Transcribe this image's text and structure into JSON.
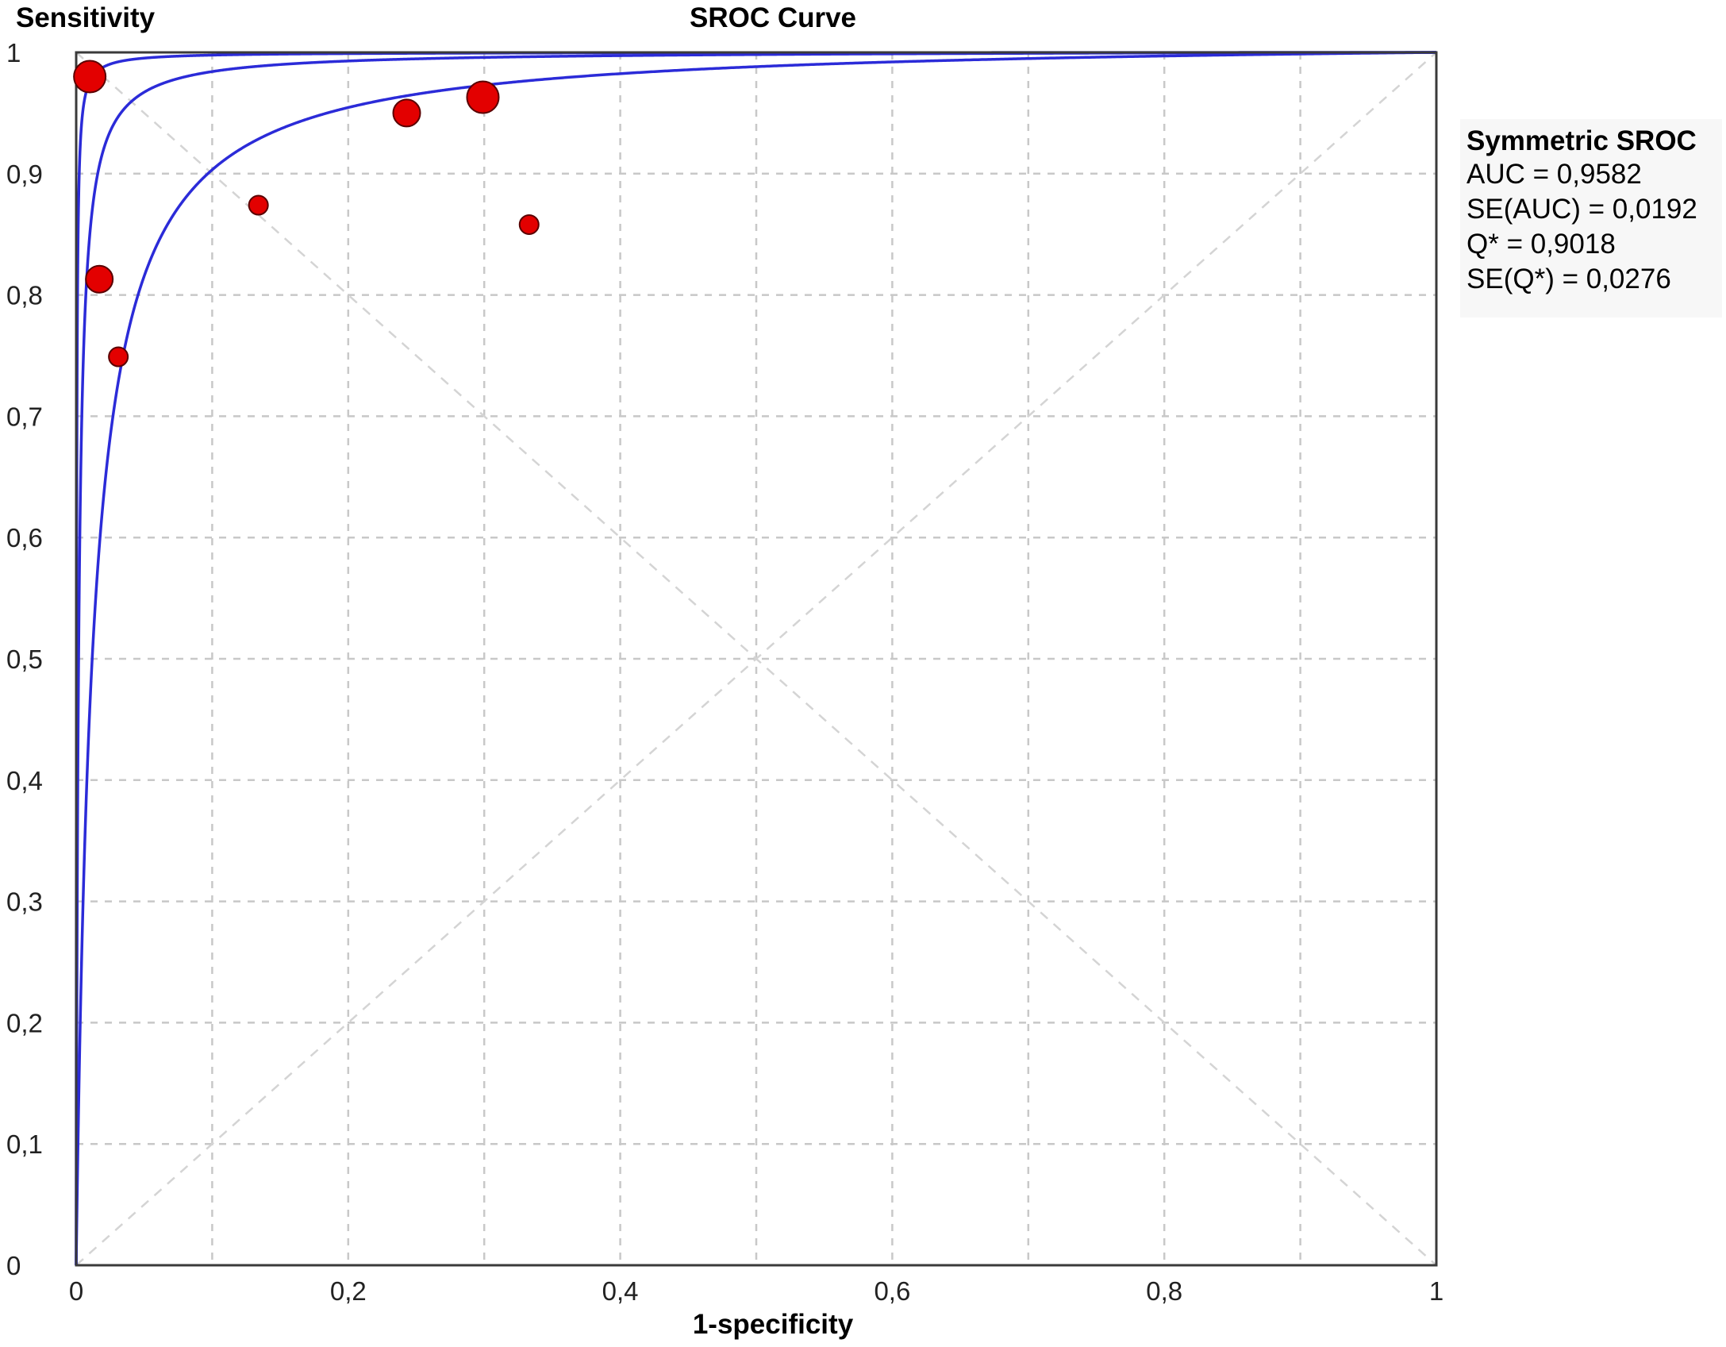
{
  "chart_data": {
    "type": "line",
    "title": "SROC Curve",
    "xlabel": "1-specificity",
    "ylabel": "Sensitivity",
    "xlim": [
      0,
      1
    ],
    "ylim": [
      0,
      1
    ],
    "x_ticks": [
      "0",
      "0,2",
      "0,4",
      "0,6",
      "0,8",
      "1"
    ],
    "y_ticks": [
      "0",
      "0,1",
      "0,2",
      "0,3",
      "0,4",
      "0,5",
      "0,6",
      "0,7",
      "0,8",
      "0,9",
      "1"
    ],
    "grid": true,
    "reference_lines": [
      "diagonal",
      "anti-diagonal"
    ],
    "curves": [
      {
        "role": "upper-bound",
        "dor": 4000
      },
      {
        "role": "sroc",
        "dor": 560
      },
      {
        "role": "lower-bound",
        "dor": 84
      }
    ],
    "points": [
      {
        "x": 0.01,
        "y": 0.98,
        "size": "large"
      },
      {
        "x": 0.017,
        "y": 0.813,
        "size": "medium"
      },
      {
        "x": 0.031,
        "y": 0.749,
        "size": "small"
      },
      {
        "x": 0.134,
        "y": 0.874,
        "size": "small"
      },
      {
        "x": 0.243,
        "y": 0.95,
        "size": "medium"
      },
      {
        "x": 0.299,
        "y": 0.963,
        "size": "large"
      },
      {
        "x": 0.333,
        "y": 0.858,
        "size": "small"
      }
    ],
    "colors": {
      "curve": "#2b2bd8",
      "point_fill": "#e30000",
      "point_stroke": "#5a0000",
      "grid": "#c8c8c8",
      "axis": "#3a3a3a"
    }
  },
  "stats": {
    "title": "Symmetric SROC",
    "auc": "AUC = 0,9582",
    "se_auc": "SE(AUC) = 0,0192",
    "q_star": "Q* = 0,9018",
    "se_q": "SE(Q*) = 0,0276"
  }
}
